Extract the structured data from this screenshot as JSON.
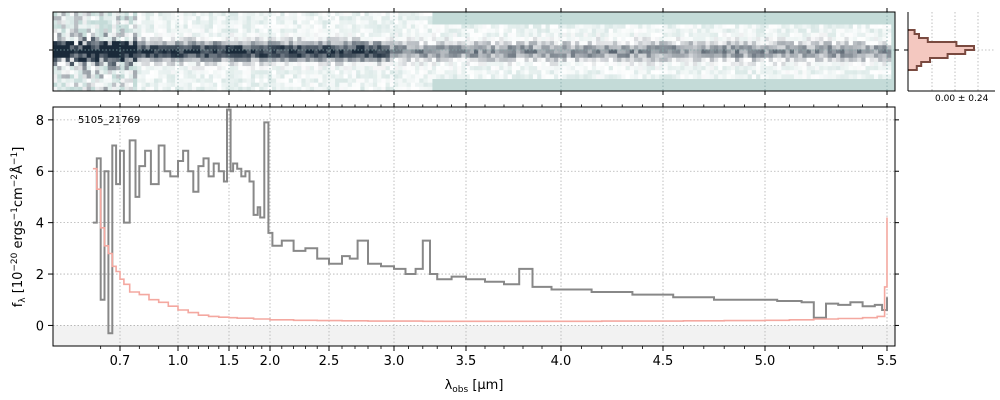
{
  "chart_data": [
    {
      "type": "heatmap",
      "panel": "2d-spectrum",
      "colormap": [
        "#c4dbd8",
        "#ffffff",
        "#1a2a3a"
      ],
      "grid": true
    },
    {
      "type": "line",
      "panel": "1d-spectrum",
      "object_label": "5105_21769",
      "xlabel_main": "λ",
      "xlabel_sub": "obs",
      "xlabel_unit": " [μm]",
      "ylabel": "f_λ [10^-20 ergs^-1cm^-2Å^-1]",
      "x_ticks": [
        "0.7",
        "1.0",
        "1.5",
        "2.0",
        "2.5",
        "3.0",
        "3.5",
        "4.0",
        "4.5",
        "5.0",
        "5.5"
      ],
      "x_tick_values": [
        0.7,
        1.0,
        1.5,
        2.0,
        2.5,
        3.0,
        3.5,
        4.0,
        4.5,
        5.0,
        5.5
      ],
      "y_ticks": [
        "0",
        "2",
        "4",
        "6",
        "8"
      ],
      "y_tick_values": [
        0,
        2,
        4,
        6,
        8
      ],
      "xlim": [
        0.55,
        5.52
      ],
      "ylim": [
        -0.8,
        8.5
      ],
      "scale": "prism",
      "grid": true,
      "series": [
        {
          "color": "#888888",
          "x": [
            0.56,
            0.58,
            0.6,
            0.62,
            0.64,
            0.66,
            0.68,
            0.7,
            0.72,
            0.75,
            0.78,
            0.8,
            0.83,
            0.86,
            0.9,
            0.93,
            0.96,
            1.0,
            1.05,
            1.1,
            1.15,
            1.2,
            1.25,
            1.3,
            1.35,
            1.4,
            1.45,
            1.48,
            1.52,
            1.55,
            1.6,
            1.65,
            1.7,
            1.75,
            1.8,
            1.85,
            1.88,
            1.93,
            1.98,
            2.02,
            2.1,
            2.2,
            2.3,
            2.4,
            2.5,
            2.6,
            2.66,
            2.72,
            2.8,
            2.9,
            3.0,
            3.08,
            3.15,
            3.2,
            3.25,
            3.3,
            3.4,
            3.5,
            3.6,
            3.7,
            3.78,
            3.85,
            3.95,
            4.05,
            4.15,
            4.25,
            4.35,
            4.45,
            4.55,
            4.65,
            4.75,
            4.85,
            4.95,
            5.05,
            5.15,
            5.2,
            5.25,
            5.3,
            5.35,
            5.4,
            5.45,
            5.48,
            5.5
          ],
          "y": [
            4.0,
            6.5,
            1.0,
            6.0,
            -0.3,
            7.0,
            5.5,
            6.8,
            4.0,
            7.2,
            5.0,
            6.2,
            6.8,
            5.5,
            7.0,
            6.0,
            5.8,
            6.4,
            6.8,
            6.0,
            5.2,
            6.2,
            6.5,
            5.8,
            6.3,
            6.0,
            5.6,
            8.4,
            6.0,
            6.3,
            6.1,
            5.8,
            6.0,
            5.6,
            4.3,
            4.6,
            4.2,
            7.9,
            3.6,
            3.1,
            3.3,
            2.9,
            3.0,
            2.6,
            2.4,
            2.7,
            2.6,
            3.3,
            2.4,
            2.3,
            2.2,
            2.0,
            2.2,
            3.3,
            2.0,
            1.8,
            1.9,
            1.8,
            1.7,
            1.6,
            2.2,
            1.5,
            1.4,
            1.4,
            1.3,
            1.3,
            1.2,
            1.2,
            1.1,
            1.1,
            1.0,
            1.0,
            1.0,
            0.95,
            0.9,
            0.3,
            0.85,
            0.8,
            0.9,
            0.75,
            0.8,
            0.6,
            1.1
          ]
        },
        {
          "color": "#f4a8a0",
          "x": [
            0.56,
            0.58,
            0.6,
            0.62,
            0.64,
            0.66,
            0.68,
            0.7,
            0.72,
            0.75,
            0.8,
            0.85,
            0.9,
            0.95,
            1.0,
            1.1,
            1.2,
            1.3,
            1.4,
            1.5,
            1.6,
            1.8,
            2.0,
            2.2,
            2.4,
            2.6,
            2.8,
            3.0,
            3.2,
            3.4,
            3.6,
            3.8,
            4.0,
            4.2,
            4.4,
            4.6,
            4.8,
            5.0,
            5.1,
            5.2,
            5.3,
            5.4,
            5.46,
            5.49,
            5.5
          ],
          "y": [
            6.1,
            5.3,
            3.8,
            3.1,
            2.8,
            2.3,
            2.1,
            1.8,
            1.6,
            1.3,
            1.2,
            1.0,
            0.9,
            0.75,
            0.6,
            0.5,
            0.4,
            0.35,
            0.32,
            0.3,
            0.28,
            0.25,
            0.22,
            0.2,
            0.19,
            0.18,
            0.17,
            0.17,
            0.16,
            0.16,
            0.16,
            0.16,
            0.16,
            0.17,
            0.17,
            0.18,
            0.19,
            0.2,
            0.22,
            0.25,
            0.27,
            0.3,
            0.35,
            1.5,
            4.2
          ]
        }
      ]
    },
    {
      "type": "bar",
      "panel": "profile",
      "label": "0.00 ± 0.24",
      "color": "#7a4a40"
    }
  ]
}
